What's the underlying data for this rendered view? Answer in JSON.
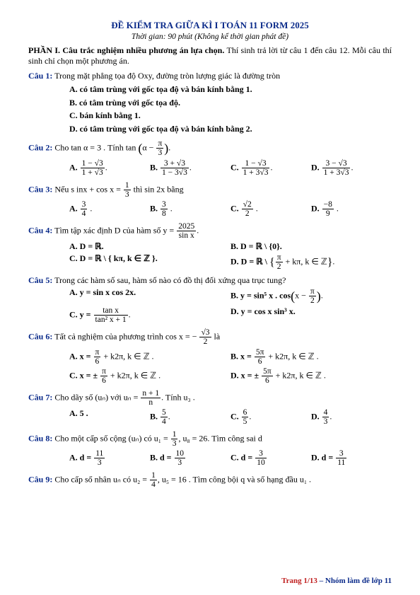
{
  "doc": {
    "title": "ĐỀ KIỂM TRA GIỮA KÌ I TOÁN 11 FORM 2025",
    "subtitle": "Thời gian: 90 phút (Không kể thời gian phát đề)",
    "section1_label": "PHẦN I. Câu trắc nghiệm nhiều phương án lựa chọn.",
    "section1_text": " Thí sinh trả lời từ câu 1 đến câu 12. Mỗi câu thí sinh chỉ chọn một phương án.",
    "footer_page": "Trang 1/13",
    "footer_sep": " – ",
    "footer_group": "Nhóm làm đề lớp 11",
    "colors": {
      "heading_blue": "#0b2b8a",
      "footer_red": "#c02020",
      "text": "#000000",
      "background": "#ffffff"
    },
    "typography": {
      "body_pt": 12,
      "title_pt": 13,
      "subtitle_pt": 11.5,
      "footer_pt": 11,
      "family": "Times New Roman"
    }
  },
  "q1": {
    "label": "Câu 1:",
    "text": " Trong mặt phẳng tọa độ Oxy, đường tròn lượng giác là đường tròn",
    "A": "A. có tâm trùng với gốc tọa độ và bán kính bằng 1.",
    "B": "B. có tâm trùng với gốc tọa độ.",
    "C": "C. bán kính bằng 1.",
    "D": "D. có tâm trùng với gốc tọa độ và bán kính bằng 2."
  },
  "q2": {
    "label": "Câu 2:",
    "lead": " Cho tan α = 3 . Tính tan",
    "expr_a": "α − ",
    "pi": "π",
    "three": "3",
    "A": {
      "num": "1 − √3",
      "den": "1 + √3"
    },
    "B": {
      "num": "3 + √3",
      "den": "1 − 3√3"
    },
    "C": {
      "num": "1 − √3",
      "den": "1 + 3√3"
    },
    "D": {
      "num": "3 − √3",
      "den": "1 + 3√3"
    },
    "labels": {
      "A": "A.",
      "B": "B.",
      "C": "C.",
      "D": "D."
    }
  },
  "q3": {
    "label": "Câu 3:",
    "lead1": " Nếu  s inx + cos x = ",
    "lead_frac": {
      "num": "1",
      "den": "3"
    },
    "lead2": " thì  sin 2x  bằng",
    "A": {
      "num": "3",
      "den": "4"
    },
    "B": {
      "num": "3",
      "den": "8"
    },
    "C": {
      "num": "√2",
      "den": "2"
    },
    "D": {
      "num": "−8",
      "den": "9"
    },
    "labels": {
      "A": "A.",
      "B": "B.",
      "C": "C.",
      "D": "D."
    }
  },
  "q4": {
    "label": "Câu 4:",
    "lead": " Tìm tập xác định D của hàm số  y = ",
    "yfrac": {
      "num": "2025",
      "den": "sin x"
    },
    "A": "A. D = ℝ.",
    "B": "B. D = ℝ \\ {0}.",
    "C": "C. D = ℝ \\ { kπ, k ∈ ℤ }.",
    "Dpre": "D. D = ℝ \\ ",
    "Dmid": " + kπ, k ∈ ℤ",
    "pi": "π",
    "two": "2"
  },
  "q5": {
    "label": "Câu 5:",
    "text": " Trong các hàm số sau, hàm số nào có đồ thị đối xứng qua trục tung?",
    "A": "A.  y = sin x cos 2x.",
    "Bpre": "B.  y = sin⁵ x . cos",
    "Bmid": "x − ",
    "pi": "π",
    "two": "2",
    "Cpre": "C.  y = ",
    "Cnum": "tan x",
    "Cden": "tan² x + 1",
    "D": "D.  y = cos x sin³ x."
  },
  "q6": {
    "label": "Câu 6:",
    "lead": " Tất cả nghiệm của phương trình  cos x = − ",
    "rfrac": {
      "num": "√3",
      "den": "2"
    },
    "tail": " là",
    "Apre": "A.  x = ",
    "Anum": "π",
    "Aden": "6",
    "Apost": " + k2π, k ∈ ℤ .",
    "Bpre": "B.  x = ",
    "Bnum": "5π",
    "Bden": "6",
    "Bpost": " + k2π, k ∈ ℤ .",
    "Cpre": "C.  x = ± ",
    "Cnum": "π",
    "Cden": "6",
    "Cpost": " + k2π, k ∈ ℤ .",
    "Dpre": "D.  x = ± ",
    "Dnum": "5π",
    "Dden": "6",
    "Dpost": " + k2π, k ∈ ℤ ."
  },
  "q7": {
    "label": "Câu 7:",
    "lead1": " Cho dãy số (uₙ) với uₙ = ",
    "frac": {
      "num": "n + 1",
      "den": "n"
    },
    "lead2": ". Tính u₃ .",
    "A": "A. 5 .",
    "B": {
      "L": "B.",
      "num": "5",
      "den": "4",
      "post": "."
    },
    "C": {
      "L": "C.",
      "num": "6",
      "den": "5",
      "post": "."
    },
    "D": {
      "L": "D.",
      "num": "4",
      "den": "3",
      "post": "."
    }
  },
  "q8": {
    "label": "Câu 8:",
    "lead1": " Cho một cấp số cộng (uₙ) có u₁ = ",
    "frac": {
      "num": "1",
      "den": "3"
    },
    "lead2": ", u₈ = 26. Tìm công sai d",
    "A": {
      "L": "A. d = ",
      "num": "11",
      "den": "3"
    },
    "B": {
      "L": "B. d = ",
      "num": "10",
      "den": "3"
    },
    "C": {
      "L": "C. d = ",
      "num": "3",
      "den": "10"
    },
    "D": {
      "L": "D. d = ",
      "num": "3",
      "den": "11"
    }
  },
  "q9": {
    "label": "Câu 9:",
    "lead1": " Cho cấp số nhân uₙ có u₂ = ",
    "frac": {
      "num": "1",
      "den": "4"
    },
    "lead2": ", u₅ = 16 . Tìm công bội q và số hạng đầu u₁ ."
  }
}
